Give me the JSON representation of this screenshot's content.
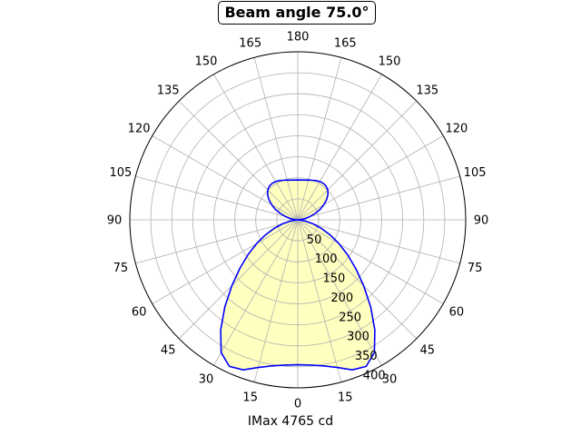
{
  "chart_data": {
    "type": "polar-area",
    "title": "Beam angle 75.0°",
    "xlabel": "IMax 4765 cd",
    "angle_ticks": [
      0,
      15,
      30,
      45,
      60,
      75,
      90,
      105,
      120,
      135,
      150,
      165,
      180,
      165,
      150,
      135,
      120,
      105,
      90,
      75,
      60,
      45,
      30,
      15
    ],
    "radial_ticks": [
      50,
      100,
      150,
      200,
      250,
      300,
      350,
      400
    ],
    "rlim": [
      0,
      400
    ],
    "grid": true,
    "line_color": "#0000ff",
    "fill_color": "#ffffc0",
    "series": [
      {
        "theta_deg": [
          0,
          5,
          10,
          15,
          20,
          25,
          30,
          35,
          40,
          45,
          50,
          55,
          60,
          65,
          70,
          75,
          80,
          85,
          90,
          95,
          100,
          105,
          110,
          115,
          120,
          125,
          130,
          135,
          140,
          145,
          150,
          155,
          160,
          165,
          170,
          175,
          180
        ],
        "r": [
          345,
          347,
          353,
          364,
          380,
          385,
          365,
          320,
          270,
          222,
          180,
          145,
          113,
          85,
          60,
          38,
          18,
          5,
          0,
          8,
          18,
          30,
          44,
          59,
          72,
          84,
          94,
          101,
          105,
          106,
          105,
          103,
          100,
          98,
          96,
          95,
          95
        ]
      }
    ]
  }
}
